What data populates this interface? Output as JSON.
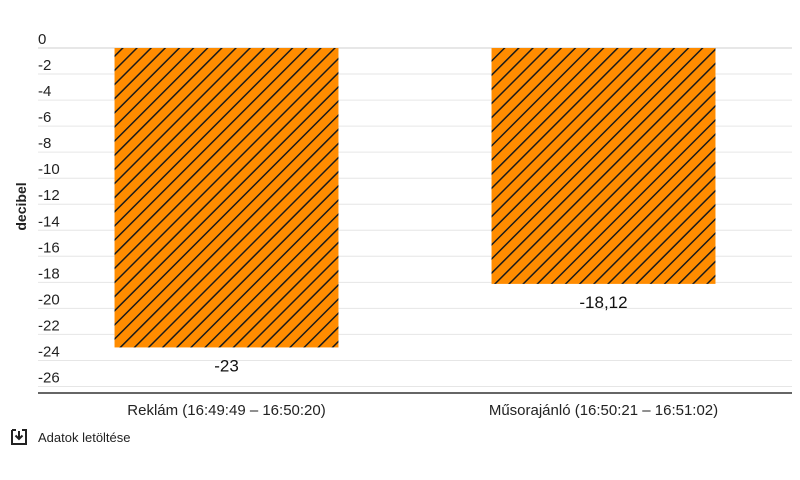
{
  "chart_data": {
    "type": "bar",
    "categories": [
      "Reklám (16:49:49 – 16:50:20)",
      "Műsorajánló (16:50:21 – 16:51:02)"
    ],
    "values": [
      -23,
      -18.12
    ],
    "value_labels": [
      "-23",
      "-18,12"
    ],
    "ylabel": "decibel",
    "ylim": [
      -26.5,
      0
    ],
    "yticks": [
      0,
      -2,
      -4,
      -6,
      -8,
      -10,
      -12,
      -14,
      -16,
      -18,
      -20,
      -22,
      -24,
      -26
    ],
    "ytick_labels": [
      "0",
      "-2",
      "-4",
      "-6",
      "-8",
      "-10",
      "-12",
      "-14",
      "-16",
      "-18",
      "-20",
      "-22",
      "-24",
      "-26"
    ],
    "grid": true,
    "legend": "none",
    "bar_color": "#ff8c00",
    "hatch_color": "#1a1a1a"
  },
  "download": {
    "label": "Adatok letöltése",
    "icon": "download-icon"
  }
}
